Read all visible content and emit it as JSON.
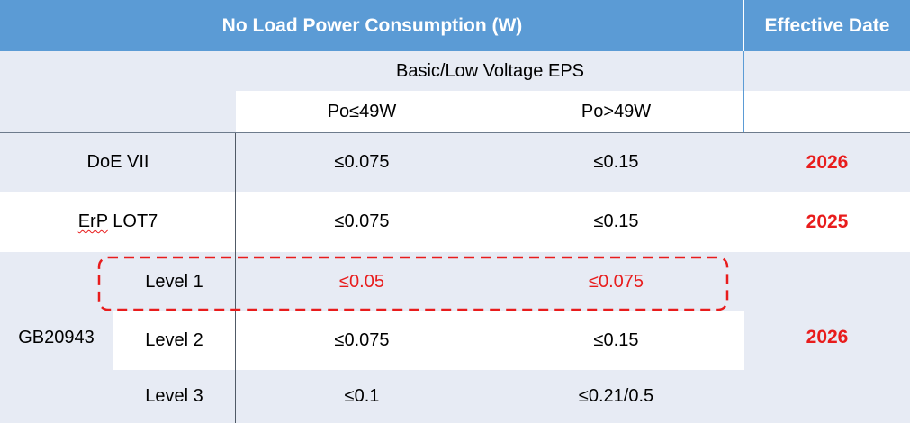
{
  "header": {
    "main_title": "No Load Power Consumption (W)",
    "date_title": "Effective Date"
  },
  "subheader": {
    "group_label": "Basic/Low Voltage EPS",
    "col1_label": "Po≤49W",
    "col2_label": "Po>49W"
  },
  "rows": {
    "doe": {
      "name": "DoE VII",
      "col1": "≤0.075",
      "col2": "≤0.15",
      "date": "2026"
    },
    "erp": {
      "name_prefix": "ErP",
      "name_suffix": " LOT7",
      "col1": "≤0.075",
      "col2": "≤0.15",
      "date": "2025"
    },
    "gb": {
      "name": "GB20943",
      "date": "2026",
      "level1": {
        "name": "Level 1",
        "col1": "≤0.05",
        "col2": "≤0.075"
      },
      "level2": {
        "name": "Level 2",
        "col1": "≤0.075",
        "col2": "≤0.15"
      },
      "level3": {
        "name": "Level 3",
        "col1": "≤0.1",
        "col2": "≤0.21/0.5"
      }
    }
  },
  "colors": {
    "header_bg": "#5b9bd5",
    "band_bg": "#e7ebf4",
    "highlight": "#e81c1c"
  }
}
